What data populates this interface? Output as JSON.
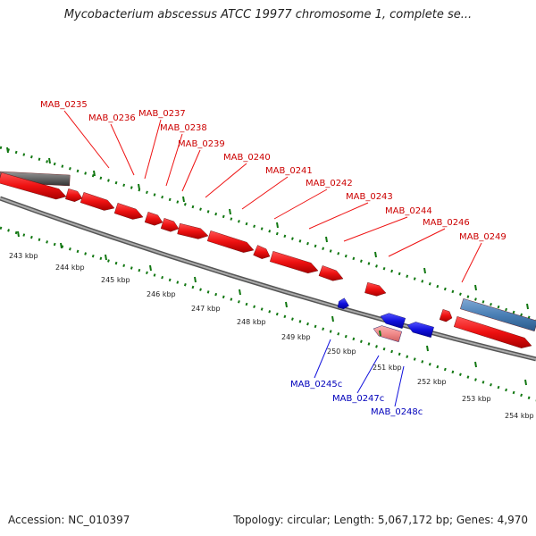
{
  "title": "Mycobacterium abscessus ATCC 19977 chromosome 1, complete se...",
  "accession": "Accession: NC_010397",
  "stats": "Topology: circular; Length: 5,067,172 bp; Genes: 4,970",
  "colors": {
    "forward": "#ee1111",
    "reverse": "#1111dd",
    "forward_label": "#cc0000",
    "reverse_label": "#0000bb",
    "tick": "#117711",
    "backbone": "#888888",
    "gray_feature": "#666666",
    "blue_feature": "#4a7fb5",
    "pink_feature": "#f08a8a"
  },
  "forward_labels": [
    "MAB_0235",
    "MAB_0236",
    "MAB_0237",
    "MAB_0238",
    "MAB_0239",
    "MAB_0240",
    "MAB_0241",
    "MAB_0242",
    "MAB_0243",
    "MAB_0244",
    "MAB_0246",
    "MAB_0249"
  ],
  "reverse_labels": [
    "MAB_0245c",
    "MAB_0247c",
    "MAB_0248c"
  ],
  "kbp_labels": [
    "243 kbp",
    "244 kbp",
    "245 kbp",
    "246 kbp",
    "247 kbp",
    "248 kbp",
    "249 kbp",
    "250 kbp",
    "251 kbp",
    "252 kbp",
    "253 kbp",
    "254 kbp"
  ]
}
